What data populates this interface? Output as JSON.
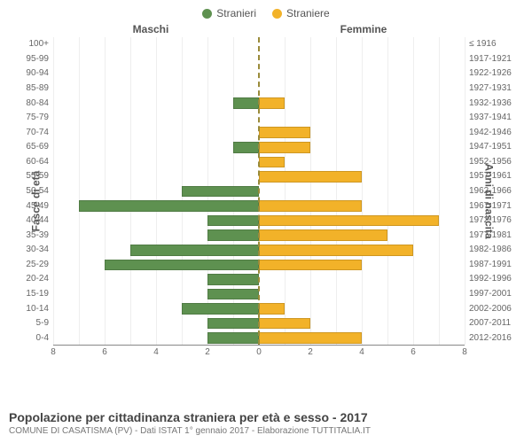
{
  "legend": {
    "left": {
      "label": "Stranieri",
      "color": "#5e9150"
    },
    "right": {
      "label": "Straniere",
      "color": "#f2b229"
    }
  },
  "gender_headers": {
    "left": "Maschi",
    "right": "Femmine"
  },
  "y_axis_left_title": "Fasce di età",
  "y_axis_right_title": "Anni di nascita",
  "chart": {
    "type": "population-pyramid",
    "x_max": 8,
    "x_ticks": [
      8,
      6,
      4,
      2,
      0,
      2,
      4,
      6,
      8
    ],
    "background_color": "#ffffff",
    "grid_color": "#eeeeee",
    "center_line_color": "#9a8b3a",
    "bar_color_left": "#5e9150",
    "bar_color_right": "#f2b229",
    "rows": [
      {
        "age": "100+",
        "birth": "≤ 1916",
        "m": 0,
        "f": 0
      },
      {
        "age": "95-99",
        "birth": "1917-1921",
        "m": 0,
        "f": 0
      },
      {
        "age": "90-94",
        "birth": "1922-1926",
        "m": 0,
        "f": 0
      },
      {
        "age": "85-89",
        "birth": "1927-1931",
        "m": 0,
        "f": 0
      },
      {
        "age": "80-84",
        "birth": "1932-1936",
        "m": 1,
        "f": 1
      },
      {
        "age": "75-79",
        "birth": "1937-1941",
        "m": 0,
        "f": 0
      },
      {
        "age": "70-74",
        "birth": "1942-1946",
        "m": 0,
        "f": 2
      },
      {
        "age": "65-69",
        "birth": "1947-1951",
        "m": 1,
        "f": 2
      },
      {
        "age": "60-64",
        "birth": "1952-1956",
        "m": 0,
        "f": 1
      },
      {
        "age": "55-59",
        "birth": "1957-1961",
        "m": 0,
        "f": 4
      },
      {
        "age": "50-54",
        "birth": "1962-1966",
        "m": 3,
        "f": 0
      },
      {
        "age": "45-49",
        "birth": "1967-1971",
        "m": 7,
        "f": 4
      },
      {
        "age": "40-44",
        "birth": "1972-1976",
        "m": 2,
        "f": 7
      },
      {
        "age": "35-39",
        "birth": "1977-1981",
        "m": 2,
        "f": 5
      },
      {
        "age": "30-34",
        "birth": "1982-1986",
        "m": 5,
        "f": 6
      },
      {
        "age": "25-29",
        "birth": "1987-1991",
        "m": 6,
        "f": 4
      },
      {
        "age": "20-24",
        "birth": "1992-1996",
        "m": 2,
        "f": 0
      },
      {
        "age": "15-19",
        "birth": "1997-2001",
        "m": 2,
        "f": 0
      },
      {
        "age": "10-14",
        "birth": "2002-2006",
        "m": 3,
        "f": 1
      },
      {
        "age": "5-9",
        "birth": "2007-2011",
        "m": 2,
        "f": 2
      },
      {
        "age": "0-4",
        "birth": "2012-2016",
        "m": 2,
        "f": 4
      }
    ]
  },
  "footer": {
    "title": "Popolazione per cittadinanza straniera per età e sesso - 2017",
    "subtitle": "COMUNE DI CASATISMA (PV) - Dati ISTAT 1° gennaio 2017 - Elaborazione TUTTITALIA.IT"
  }
}
